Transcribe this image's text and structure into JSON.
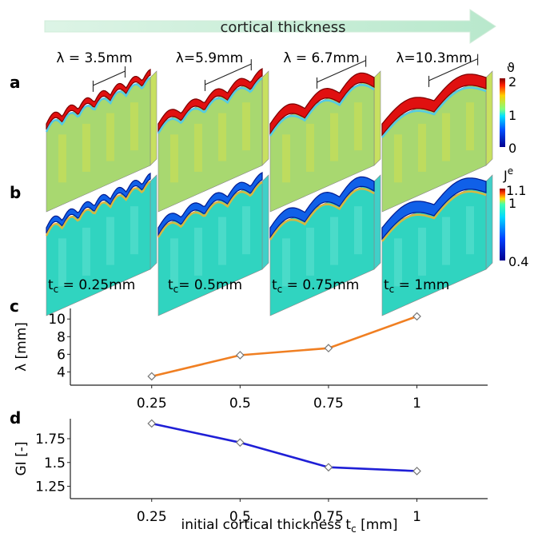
{
  "banner": {
    "text": "cortical thickness",
    "color": "#c8ecd8"
  },
  "panels": {
    "a": {
      "label": "a",
      "colorbar_symbol": "ϑ",
      "colorbar_ticks": [
        "2",
        "1",
        "0"
      ]
    },
    "b": {
      "label": "b",
      "colorbar_symbol": "J",
      "colorbar_sup": "e",
      "colorbar_ticks": [
        "1.1",
        "1",
        "0.4"
      ]
    }
  },
  "wavelength_labels": [
    "λ = 3.5mm",
    "λ=5.9mm",
    "λ = 6.7mm",
    "λ=10.3mm"
  ],
  "thickness_labels": [
    {
      "t": "t",
      "sub": "c",
      "rest": " = 0.25mm"
    },
    {
      "t": "t",
      "sub": "c",
      "rest": "= 0.5mm"
    },
    {
      "t": "t",
      "sub": "c",
      "rest": " = 0.75mm"
    },
    {
      "t": "t",
      "sub": "c",
      "rest": " = 1mm"
    }
  ],
  "xlabel": {
    "text": "initial cortical thickness t",
    "sub": "c",
    "unit": " [mm]"
  },
  "chart_data": [
    {
      "type": "line",
      "panel": "c",
      "x": [
        0.25,
        0.5,
        0.75,
        1
      ],
      "x_tick_labels": [
        "0.25",
        "0.5",
        "0.75",
        "1"
      ],
      "series": [
        {
          "values": [
            3.5,
            5.9,
            6.7,
            10.3
          ],
          "color": "#f07f22"
        }
      ],
      "ylabel": "λ [mm]",
      "y_ticks": [
        4,
        6,
        8,
        10
      ],
      "xlim": [
        0.02,
        1.2
      ],
      "ylim": [
        2.5,
        11.2
      ]
    },
    {
      "type": "line",
      "panel": "d",
      "x": [
        0.25,
        0.5,
        0.75,
        1
      ],
      "x_tick_labels": [
        "0.25",
        "0.5",
        "0.75",
        "1"
      ],
      "series": [
        {
          "values": [
            1.91,
            1.71,
            1.45,
            1.41
          ],
          "color": "#1f1fd6"
        }
      ],
      "ylabel": "GI [-]",
      "y_ticks": [
        1.25,
        1.5,
        1.75
      ],
      "y_tick_labels": [
        "1.25",
        "1.5",
        "1.75"
      ],
      "xlim": [
        0.02,
        1.2
      ],
      "ylim": [
        1.12,
        1.96
      ]
    }
  ]
}
